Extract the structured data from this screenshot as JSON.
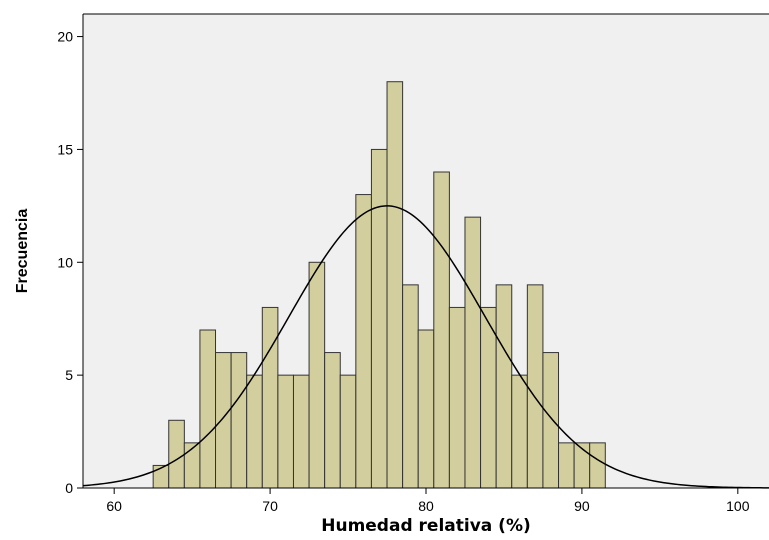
{
  "chart_data": {
    "type": "bar",
    "subtype": "histogram-with-normal-curve",
    "title": "",
    "xlabel": "Humedad relativa (%)",
    "ylabel": "Frecuencia",
    "xlim": [
      58,
      102
    ],
    "ylim": [
      0,
      21
    ],
    "x_ticks": [
      60,
      70,
      80,
      90,
      100
    ],
    "y_ticks": [
      0,
      5,
      10,
      15,
      20
    ],
    "bin_width": 1,
    "bins": [
      {
        "start": 62.5,
        "value": 1
      },
      {
        "start": 63.5,
        "value": 3
      },
      {
        "start": 64.5,
        "value": 2
      },
      {
        "start": 65.5,
        "value": 7
      },
      {
        "start": 66.5,
        "value": 6
      },
      {
        "start": 67.5,
        "value": 6
      },
      {
        "start": 68.5,
        "value": 5
      },
      {
        "start": 69.5,
        "value": 8
      },
      {
        "start": 70.5,
        "value": 5
      },
      {
        "start": 71.5,
        "value": 5
      },
      {
        "start": 72.5,
        "value": 10
      },
      {
        "start": 73.5,
        "value": 6
      },
      {
        "start": 74.5,
        "value": 5
      },
      {
        "start": 75.5,
        "value": 13
      },
      {
        "start": 76.5,
        "value": 15
      },
      {
        "start": 77.5,
        "value": 18
      },
      {
        "start": 78.5,
        "value": 9
      },
      {
        "start": 79.5,
        "value": 7
      },
      {
        "start": 80.5,
        "value": 14
      },
      {
        "start": 81.5,
        "value": 8
      },
      {
        "start": 82.5,
        "value": 12
      },
      {
        "start": 83.5,
        "value": 8
      },
      {
        "start": 84.5,
        "value": 9
      },
      {
        "start": 85.5,
        "value": 5
      },
      {
        "start": 86.5,
        "value": 9
      },
      {
        "start": 87.5,
        "value": 6
      },
      {
        "start": 88.5,
        "value": 2
      },
      {
        "start": 89.5,
        "value": 2
      },
      {
        "start": 90.5,
        "value": 2
      }
    ],
    "normal_curve": {
      "mean": 77.5,
      "sd": 6.3,
      "peak": 12.5
    },
    "grid": false,
    "legend": "none",
    "colors": {
      "plot_background": "#f0f0f0",
      "bar_fill": "#d3ce9e",
      "bar_stroke": "#333333",
      "curve": "#000000"
    }
  }
}
